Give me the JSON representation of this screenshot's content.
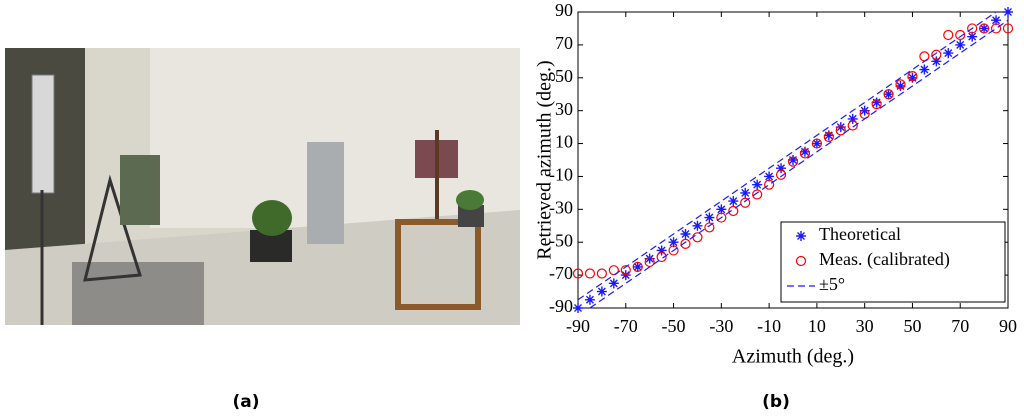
{
  "captions": [
    "(a)",
    "(b)"
  ],
  "chart_data": {
    "type": "scatter",
    "xlabel": "Azimuth (deg.)",
    "ylabel": "Retrieved azimuth (deg.)",
    "x": [
      -90,
      -85,
      -80,
      -75,
      -70,
      -65,
      -60,
      -55,
      -50,
      -45,
      -40,
      -35,
      -30,
      -25,
      -20,
      -15,
      -10,
      -5,
      0,
      5,
      10,
      15,
      20,
      25,
      30,
      35,
      40,
      45,
      50,
      55,
      60,
      65,
      70,
      75,
      80,
      85,
      90
    ],
    "series": [
      {
        "name": "Theoretical",
        "color": "#1a1aff",
        "marker": "star",
        "values": [
          -90,
          -85,
          -80,
          -75,
          -70,
          -65,
          -60,
          -55,
          -50,
          -45,
          -40,
          -35,
          -30,
          -25,
          -20,
          -15,
          -10,
          -5,
          0,
          5,
          10,
          15,
          20,
          25,
          30,
          35,
          40,
          45,
          50,
          55,
          60,
          65,
          70,
          75,
          80,
          85,
          90
        ]
      },
      {
        "name": "Meas. (calibrated)",
        "color": "#ff0000",
        "marker": "circle",
        "values": [
          -69,
          -69,
          -69,
          -67,
          -67,
          -65,
          -62,
          -59,
          -55,
          -51,
          -47,
          -41,
          -35,
          -31,
          -26,
          -21,
          -15,
          -9,
          -1,
          4,
          10,
          14,
          18,
          21,
          28,
          34,
          40,
          46,
          51,
          63,
          64,
          76,
          76,
          80,
          80,
          80,
          80
        ]
      },
      {
        "name": "±5°",
        "color": "#1a1aff",
        "marker": "dashed-band",
        "offset": 5
      }
    ],
    "xlim": [
      -90,
      90
    ],
    "ylim": [
      -90,
      90
    ],
    "xticks": [
      -90,
      -70,
      -50,
      -30,
      -10,
      10,
      30,
      50,
      70,
      90
    ],
    "yticks": [
      -90,
      -70,
      -50,
      -30,
      -10,
      10,
      30,
      50,
      70,
      90
    ],
    "grid": false,
    "legend": "lower right"
  }
}
